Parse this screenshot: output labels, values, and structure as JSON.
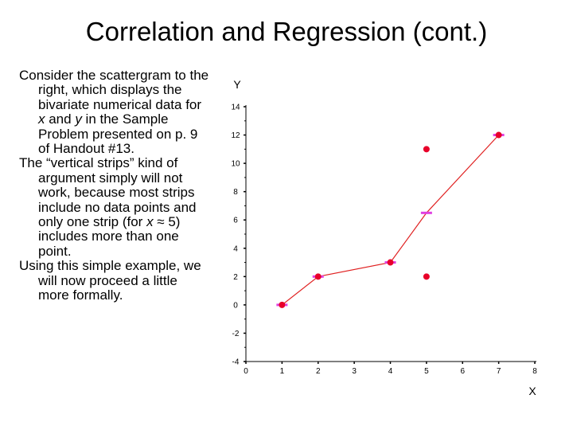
{
  "slide": {
    "title": "Correlation and Regression (cont.)",
    "bullets": [
      [
        "Consider the scattergram to the right, which displays the bivariate numerical data for ",
        {
          "i": "x"
        },
        " and ",
        {
          "i": "y"
        },
        " in the Sample Problem presented on p. 9 of Handout #13."
      ],
      [
        "The “vertical strips” kind of argument simply will not work, because most strips include no data points and only one strip (for ",
        {
          "i": "x"
        },
        " ≈ 5) includes more than one point."
      ],
      [
        "Using this simple example, we will now proceed a little more formally."
      ]
    ]
  },
  "chart_data": {
    "type": "scatter",
    "xlabel": "X",
    "ylabel": "Y",
    "xlim": [
      0,
      8
    ],
    "ylim": [
      -4,
      14
    ],
    "x_ticks": [
      0,
      1,
      2,
      3,
      4,
      5,
      6,
      7,
      8
    ],
    "y_ticks": [
      -4,
      -2,
      0,
      2,
      4,
      6,
      8,
      10,
      12,
      14
    ],
    "grid": false,
    "points": [
      {
        "x": 1,
        "y": 0
      },
      {
        "x": 2,
        "y": 2
      },
      {
        "x": 4,
        "y": 3
      },
      {
        "x": 5,
        "y": 2
      },
      {
        "x": 5,
        "y": 11
      },
      {
        "x": 7,
        "y": 12
      }
    ],
    "connecting_line": [
      {
        "x": 1,
        "y": 0
      },
      {
        "x": 2,
        "y": 2
      },
      {
        "x": 4,
        "y": 3
      },
      {
        "x": 5,
        "y": 6.5
      },
      {
        "x": 7,
        "y": 12
      }
    ],
    "colors": {
      "point": "#e8002a",
      "line": "#e02020",
      "marker": "#e040e0",
      "axis": "#000000"
    }
  }
}
